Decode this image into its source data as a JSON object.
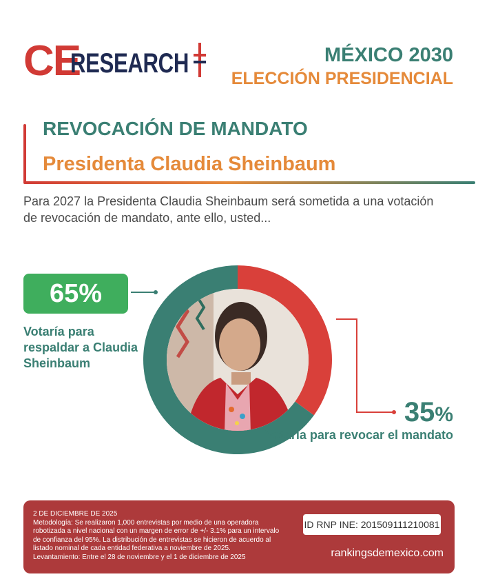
{
  "header": {
    "logo_ce": "CE",
    "logo_research": "RESEARCH",
    "line1": "MÉXICO 2030",
    "line2": "ELECCIÓN PRESIDENCIAL"
  },
  "title": {
    "line1": "REVOCACIÓN DE MANDATO",
    "line2": "Presidenta Claudia Sheinbaum"
  },
  "question": "Para 2027 la Presidenta Claudia Sheinbaum será sometida a una votación de revocación de mandato, ante ello, usted...",
  "results": {
    "support_pct": "65%",
    "support_label": "Votaría para respaldar a Claudia Sheinbaum",
    "revoke_pct_number": "35",
    "revoke_pct_sign": "%",
    "revoke_label": "Votaría para revocar el mandato"
  },
  "chart_data": {
    "type": "pie",
    "categories": [
      "Votaría para respaldar a Claudia Sheinbaum",
      "Votaría para revocar el mandato"
    ],
    "values": [
      65,
      35
    ],
    "colors": [
      "#3a7f73",
      "#d9403a"
    ]
  },
  "footer": {
    "date": "2 DE DICIEMBRE DE 2025",
    "methodology": "Metodología: Se realizaron 1,000 entrevistas por medio de una operadora robotizada a nivel nacional con un margen de error de +/- 3.1% para un intervalo de confianza del 95%. La distribución de entrevistas se hicieron de acuerdo al listado nominal de cada entidad federativa a noviembre de 2025.",
    "fieldwork": "Levantamiento: Entre el 28 de noviembre y el 1 de diciembre de 2025",
    "rnp": "ID RNP INE: 201509111210081",
    "website": "rankingsdemexico.com"
  },
  "colors": {
    "teal": "#3a7f73",
    "orange": "#e58a3a",
    "red": "#d13a35",
    "green_badge": "#3fae5d",
    "footer_bg": "#ad3a3b",
    "navy": "#1f2a52"
  }
}
